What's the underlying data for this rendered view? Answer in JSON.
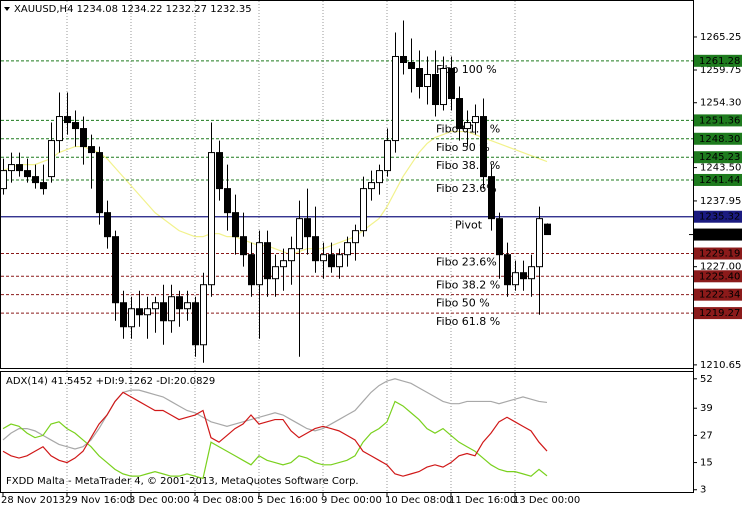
{
  "copyright": "FXDD Malta - MetaTrader 4, © 2001-2013, MetaQuotes Software Corp.",
  "chart_data": [
    {
      "type": "candlestick",
      "title": "XAUUSD,H4 1234.08 1234.22 1232.27 1232.35",
      "categories": [
        "28 Nov 2013",
        null,
        null,
        null,
        null,
        null,
        null,
        null,
        "29 Nov 16:00",
        null,
        null,
        null,
        null,
        null,
        null,
        null,
        "3 Dec 00:00",
        null,
        null,
        null,
        null,
        null,
        null,
        null,
        "4 Dec 08:00",
        null,
        null,
        null,
        null,
        null,
        null,
        null,
        "5 Dec 16:00",
        null,
        null,
        null,
        null,
        null,
        null,
        null,
        "9 Dec 00:00",
        null,
        null,
        null,
        null,
        null,
        null,
        null,
        "10 Dec 08:00",
        null,
        null,
        null,
        null,
        null,
        null,
        null,
        "11 Dec 16:00",
        null,
        null,
        null,
        null,
        null,
        null,
        null,
        "13 Dec 00:00",
        null,
        null,
        null,
        null
      ],
      "open": [
        1240,
        1243,
        1244,
        1243,
        1242,
        1241,
        1242,
        1248,
        1252,
        1251,
        1250,
        1247,
        1246,
        1236,
        1232,
        1221,
        1217,
        1220,
        1219,
        1220,
        1221,
        1218,
        1222,
        1220,
        1221,
        1214,
        1224,
        1246,
        1240,
        1236,
        1232,
        1229,
        1224,
        1231,
        1225,
        1227,
        1228,
        1230,
        1235,
        1232,
        1228,
        1229,
        1227,
        1229,
        1231,
        1233,
        1240,
        1241,
        1243,
        1248,
        1262,
        1261,
        1260,
        1257,
        1259,
        1254,
        1260,
        1255,
        1250,
        1251,
        1252,
        1242,
        1235,
        1229,
        1224,
        1226,
        1225,
        1227,
        1234.08
      ],
      "high": [
        1245,
        1246,
        1246,
        1245,
        1244,
        1244,
        1251,
        1256,
        1256,
        1253,
        1252,
        1249,
        1247,
        1238,
        1233,
        1223,
        1222,
        1223,
        1222,
        1222,
        1224,
        1224,
        1223,
        1223,
        1222,
        1226,
        1251,
        1248,
        1244,
        1239,
        1236,
        1231,
        1233,
        1233,
        1229,
        1230,
        1232,
        1238,
        1240,
        1237,
        1231,
        1231,
        1230,
        1232,
        1234,
        1242,
        1243,
        1244,
        1250,
        1266,
        1268,
        1265,
        1263,
        1262,
        1263,
        1262,
        1262,
        1257,
        1253,
        1254,
        1255,
        1244,
        1236,
        1231,
        1228,
        1228,
        1229,
        1237,
        1234.22
      ],
      "low": [
        1239,
        1241,
        1242,
        1241,
        1240,
        1239,
        1241,
        1246,
        1249,
        1247,
        1244,
        1240,
        1234,
        1230,
        1218,
        1215,
        1215,
        1217,
        1215,
        1216,
        1214,
        1216,
        1217,
        1218,
        1212,
        1211,
        1222,
        1238,
        1233,
        1229,
        1227,
        1222,
        1215,
        1222,
        1222,
        1223,
        1224,
        1212,
        1229,
        1226,
        1225,
        1226,
        1225,
        1227,
        1228,
        1232,
        1238,
        1239,
        1242,
        1246,
        1259,
        1256,
        1255,
        1254,
        1252,
        1253,
        1253,
        1248,
        1247,
        1249,
        1240,
        1233,
        1225,
        1222,
        1223,
        1223,
        1222,
        1219,
        1232.27
      ],
      "close": [
        1243,
        1244,
        1243,
        1242,
        1241,
        1240,
        1248,
        1252,
        1251,
        1250,
        1247,
        1246,
        1236,
        1232,
        1221,
        1217,
        1220,
        1219,
        1220,
        1221,
        1218,
        1222,
        1220,
        1221,
        1214,
        1224,
        1246,
        1240,
        1236,
        1232,
        1229,
        1224,
        1231,
        1225,
        1227,
        1228,
        1230,
        1235,
        1232,
        1228,
        1229,
        1227,
        1229,
        1231,
        1233,
        1240,
        1241,
        1243,
        1248,
        1262,
        1261,
        1260,
        1257,
        1259,
        1254,
        1260,
        1255,
        1250,
        1251,
        1252,
        1242,
        1235,
        1229,
        1224,
        1226,
        1225,
        1227,
        1235,
        1232.35
      ],
      "up_color": "#ffffff",
      "down_color": "#000000",
      "series": [
        {
          "color": "#f2f28c",
          "values": [
            1243,
            1243.5,
            1244,
            1244,
            1244,
            1244.5,
            1245,
            1246,
            1246.5,
            1247,
            1247,
            1246.5,
            1246,
            1245,
            1243.5,
            1242,
            1240.5,
            1239,
            1237.5,
            1236,
            1235,
            1234,
            1233,
            1232.5,
            1232,
            1232,
            1232.5,
            1232.5,
            1232,
            1232,
            1231.5,
            1231,
            1230.5,
            1230.5,
            1230,
            1229.5,
            1229,
            1229.5,
            1230,
            1230,
            1230,
            1230.5,
            1231,
            1231.5,
            1232,
            1233,
            1234,
            1235,
            1237,
            1239.5,
            1242,
            1244,
            1246,
            1247.5,
            1248.5,
            1249,
            1249.5,
            1249.5,
            1249.5,
            1249,
            1248.5,
            1248,
            1247.5,
            1247,
            1246.5,
            1246,
            1245.5,
            1245,
            1244.5
          ]
        }
      ],
      "levels": [
        {
          "name": "Fibo 100 %",
          "price": 1261.28,
          "color": "#1e7b1e"
        },
        {
          "name": "Fibo 61.8 %",
          "price": 1251.36,
          "color": "#1e7b1e"
        },
        {
          "name": "Fibo 50 %",
          "price": 1248.3,
          "price_label": "1248.30",
          "color": "#1e7b1e"
        },
        {
          "name": "Fibo 38.2 %",
          "price": 1245.23,
          "color": "#1e7b1e"
        },
        {
          "name": "Fibo 23.6%",
          "price": 1241.44,
          "color": "#1e7b1e"
        },
        {
          "name": "Pivot",
          "price": 1235.32,
          "color": "#1a1a80"
        },
        {
          "name": "Fibo 23.6%",
          "price": 1229.19,
          "color": "#8b1a1a"
        },
        {
          "name": "Fibo 38.2 %",
          "price": 1225.4,
          "price_label": "1225.40",
          "color": "#8b1a1a"
        },
        {
          "name": "Fibo 50 %",
          "price": 1222.34,
          "color": "#8b1a1a"
        },
        {
          "name": "Fibo 61.8 %",
          "price": 1219.27,
          "color": "#8b1a1a"
        }
      ],
      "ylim": [
        1210.13,
        1271.24
      ],
      "yticks": [
        1265.25,
        1259.75,
        {
          "value": 1254.3,
          "label": "1254.30"
        },
        {
          "value": 1243.5,
          "label": "1243.50"
        },
        1237.95,
        {
          "value": 1227,
          "label": "1227.00"
        },
        1210.65
      ],
      "grid": true
    },
    {
      "type": "line",
      "title": "ADX(14) 41.5452 +DI:9.1262 -DI:20.0829",
      "series": [
        {
          "color": "#a8a8a8",
          "values": [
            25,
            28,
            30,
            30,
            29,
            27,
            25,
            23,
            22,
            21,
            22,
            25,
            30,
            36,
            42,
            46,
            47,
            47,
            46,
            45,
            44,
            42,
            40,
            38,
            37,
            35,
            33,
            32,
            31,
            32,
            33,
            34,
            35,
            36,
            37,
            36,
            34,
            32,
            30,
            29,
            30,
            32,
            34,
            36,
            38,
            42,
            46,
            49,
            51,
            52,
            51,
            50,
            48,
            46,
            44,
            42,
            41,
            41,
            42,
            42,
            42,
            42,
            41,
            42,
            43,
            44,
            43,
            42,
            41.5452
          ]
        },
        {
          "color": "#7ad11e",
          "values": [
            30,
            32,
            31,
            28,
            26,
            27,
            32,
            33,
            30,
            28,
            25,
            22,
            18,
            15,
            12,
            10,
            9,
            9,
            10,
            11,
            10,
            9,
            9,
            10,
            9,
            8,
            24,
            22,
            20,
            18,
            16,
            14,
            18,
            16,
            15,
            14,
            15,
            18,
            17,
            15,
            14,
            14,
            15,
            16,
            18,
            24,
            28,
            30,
            33,
            42,
            40,
            37,
            34,
            30,
            28,
            30,
            27,
            24,
            22,
            20,
            17,
            14,
            12,
            11,
            11,
            10,
            9,
            12,
            9.1262
          ]
        },
        {
          "color": "#d01818",
          "values": [
            20,
            18,
            17,
            18,
            20,
            22,
            18,
            16,
            15,
            17,
            20,
            26,
            32,
            36,
            42,
            46,
            44,
            42,
            40,
            38,
            38,
            36,
            34,
            35,
            36,
            38,
            26,
            24,
            27,
            30,
            32,
            36,
            32,
            33,
            34,
            34,
            29,
            26,
            28,
            30,
            31,
            30,
            29,
            27,
            25,
            20,
            18,
            16,
            14,
            10,
            9,
            10,
            11,
            13,
            14,
            13,
            15,
            18,
            19,
            18,
            24,
            28,
            33,
            35,
            33,
            31,
            29,
            24,
            20.0829
          ]
        }
      ],
      "ylim": [
        2,
        55
      ],
      "yticks": [
        52,
        39,
        27,
        15,
        3
      ]
    }
  ]
}
